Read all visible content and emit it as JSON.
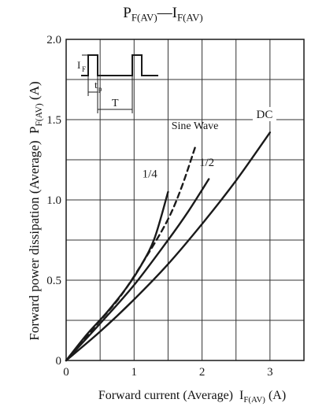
{
  "chart_data": {
    "type": "line",
    "title_main": "P",
    "title_main_sub": "F(AV)",
    "title_sep": "—",
    "title_second": "I",
    "title_second_sub": "F(AV)",
    "xlabel": "Forward current (Average)",
    "xlabel_symbol": "I",
    "xlabel_symbol_sub": "F(AV)",
    "xlabel_unit": "(A)",
    "ylabel": "Forward power dissipation (Average)",
    "ylabel_symbol": "P",
    "ylabel_symbol_sub": "F(AV)",
    "ylabel_unit": "(A)",
    "xlim": [
      0,
      3.5
    ],
    "ylim": [
      0,
      2.0
    ],
    "x_ticks": [
      "0",
      "1",
      "2",
      "3"
    ],
    "y_ticks": [
      "0",
      "0.5",
      "1.0",
      "1.5",
      "2.0"
    ],
    "grid": true,
    "series": [
      {
        "name": "1/4",
        "style": "solid",
        "x": [
          0,
          0.3,
          0.6,
          0.9,
          1.1,
          1.3,
          1.5
        ],
        "y": [
          0,
          0.16,
          0.3,
          0.46,
          0.59,
          0.76,
          1.05
        ]
      },
      {
        "name": "Sine Wave",
        "style": "dashed",
        "x": [
          0,
          0.4,
          0.8,
          1.2,
          1.5,
          1.7,
          1.9
        ],
        "y": [
          0,
          0.2,
          0.4,
          0.66,
          0.88,
          1.08,
          1.33
        ]
      },
      {
        "name": "1/2",
        "style": "solid",
        "x": [
          0,
          0.5,
          1.0,
          1.5,
          1.8,
          2.1
        ],
        "y": [
          0,
          0.23,
          0.47,
          0.75,
          0.93,
          1.13
        ]
      },
      {
        "name": "DC",
        "style": "solid",
        "x": [
          0,
          0.5,
          1.0,
          1.5,
          2.0,
          2.5,
          3.0
        ],
        "y": [
          0,
          0.18,
          0.38,
          0.6,
          0.85,
          1.12,
          1.42
        ]
      }
    ],
    "waveform_labels": {
      "peak": "I",
      "peak_sub": "F",
      "pulse": "t",
      "pulse_sub": "p",
      "period": "T"
    }
  },
  "colors": {
    "line": "#1a1a1a",
    "grid": "#333333",
    "background": "#ffffff"
  }
}
